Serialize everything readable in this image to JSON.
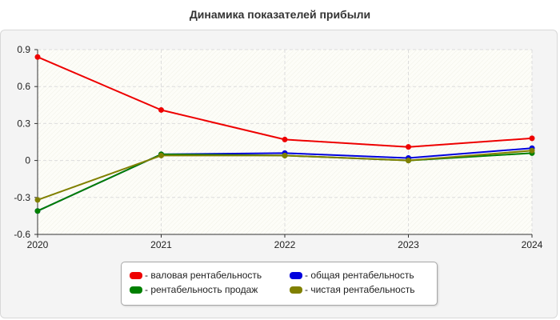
{
  "title": "Динамика показателей прибыли",
  "chart_data": {
    "type": "line",
    "title": "Динамика показателей прибыли",
    "x": [
      "2020",
      "2021",
      "2022",
      "2023",
      "2024"
    ],
    "ylim": [
      -0.6,
      0.9
    ],
    "yticks": [
      "0.9",
      "0.6",
      "0.3",
      "0",
      "-0.3",
      "-0.6"
    ],
    "ytick_values": [
      0.9,
      0.6,
      0.3,
      0,
      -0.3,
      -0.6
    ],
    "grid": true,
    "legend_position": "bottom",
    "series": [
      {
        "name": "- валовая рентабельность",
        "color": "#ee0000",
        "values": [
          0.84,
          0.41,
          0.17,
          0.11,
          0.18
        ]
      },
      {
        "name": "- общая рентабельность",
        "color": "#0000dd",
        "values": [
          -0.41,
          0.05,
          0.06,
          0.02,
          0.1
        ]
      },
      {
        "name": "- рентабельность продаж",
        "color": "#008000",
        "values": [
          -0.41,
          0.05,
          0.04,
          0.0,
          0.06
        ]
      },
      {
        "name": "- чистая рентабельность",
        "color": "#808000",
        "values": [
          -0.32,
          0.04,
          0.04,
          0.0,
          0.08
        ]
      }
    ]
  }
}
